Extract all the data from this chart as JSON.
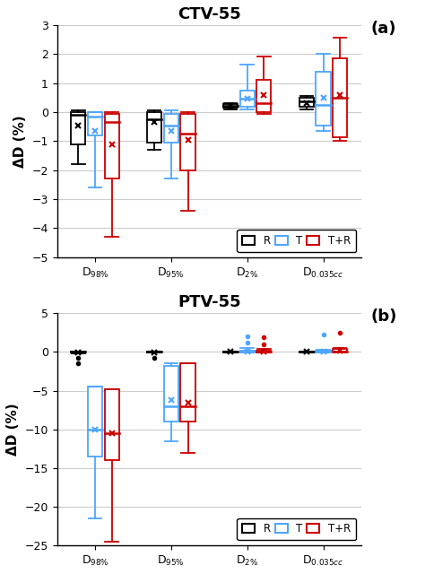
{
  "title_a": "CTV-55",
  "title_b": "PTV-55",
  "label_a": "(a)",
  "label_b": "(b)",
  "ylabel": "ΔD (%)",
  "colors": [
    "black",
    "#4da6ff",
    "#cc0000"
  ],
  "legend_labels": [
    "R",
    "T",
    "T+R"
  ],
  "ctv_data": {
    "R": {
      "D98": {
        "q1": -1.1,
        "median": -0.1,
        "q3": 0.0,
        "whislo": -1.8,
        "whishi": 0.05,
        "mean": -0.45
      },
      "D95": {
        "q1": -1.05,
        "median": -0.25,
        "q3": 0.0,
        "whislo": -1.3,
        "whishi": 0.05,
        "mean": -0.35
      },
      "D2": {
        "q1": 0.15,
        "median": 0.22,
        "q3": 0.28,
        "whislo": 0.1,
        "whishi": 0.32,
        "mean": 0.22
      },
      "D035": {
        "q1": 0.2,
        "median": 0.38,
        "q3": 0.5,
        "whislo": 0.1,
        "whishi": 0.55,
        "mean": 0.32
      }
    },
    "T": {
      "D98": {
        "q1": -0.8,
        "median": -0.15,
        "q3": 0.0,
        "whislo": -2.6,
        "whishi": 0.0,
        "mean": -0.65
      },
      "D95": {
        "q1": -1.05,
        "median": -0.45,
        "q3": -0.05,
        "whislo": -2.3,
        "whishi": 0.05,
        "mean": -0.65
      },
      "D2": {
        "q1": 0.2,
        "median": 0.45,
        "q3": 0.75,
        "whislo": 0.1,
        "whishi": 1.65,
        "mean": 0.45
      },
      "D035": {
        "q1": -0.45,
        "median": 0.25,
        "q3": 1.4,
        "whislo": -0.65,
        "whishi": 2.0,
        "mean": 0.5
      }
    },
    "TR": {
      "D98": {
        "q1": -2.3,
        "median": -0.35,
        "q3": -0.05,
        "whislo": -4.3,
        "whishi": 0.0,
        "mean": -1.1
      },
      "D95": {
        "q1": -2.0,
        "median": -0.75,
        "q3": -0.05,
        "whislo": -3.4,
        "whishi": 0.0,
        "mean": -0.95
      },
      "D2": {
        "q1": 0.0,
        "median": 0.3,
        "q3": 1.1,
        "whislo": -0.05,
        "whishi": 1.9,
        "mean": 0.6
      },
      "D035": {
        "q1": -0.85,
        "median": 0.5,
        "q3": 1.85,
        "whislo": -1.0,
        "whishi": 2.55,
        "mean": 0.6
      }
    }
  },
  "ptv_data": {
    "R": {
      "D98": {
        "q1": -0.05,
        "median": 0.0,
        "q3": 0.0,
        "whislo": -0.15,
        "whishi": 0.0,
        "mean": -0.02,
        "fliers": [
          -0.8,
          -1.5
        ]
      },
      "D95": {
        "q1": -0.05,
        "median": 0.0,
        "q3": 0.0,
        "whislo": -0.1,
        "whishi": 0.0,
        "mean": -0.02,
        "fliers": [
          -0.8
        ]
      },
      "D2": {
        "q1": -0.02,
        "median": 0.0,
        "q3": 0.0,
        "whislo": -0.05,
        "whishi": 0.02,
        "mean": 0.0,
        "fliers": []
      },
      "D035": {
        "q1": -0.02,
        "median": 0.0,
        "q3": 0.02,
        "whislo": -0.05,
        "whishi": 0.05,
        "mean": 0.0,
        "fliers": []
      }
    },
    "T": {
      "D98": {
        "q1": -13.5,
        "median": -10.0,
        "q3": -4.5,
        "whislo": -21.5,
        "whishi": -4.5,
        "mean": -10.0,
        "fliers": []
      },
      "D95": {
        "q1": -9.0,
        "median": -7.0,
        "q3": -1.8,
        "whislo": -11.5,
        "whishi": -1.5,
        "mean": -6.2,
        "fliers": []
      },
      "D2": {
        "q1": 0.0,
        "median": 0.05,
        "q3": 0.2,
        "whislo": -0.05,
        "whishi": 0.5,
        "mean": 0.1,
        "fliers": [
          1.2,
          2.0
        ]
      },
      "D035": {
        "q1": 0.0,
        "median": 0.05,
        "q3": 0.2,
        "whislo": -0.02,
        "whishi": 0.3,
        "mean": 0.1,
        "fliers": [
          2.3
        ]
      }
    },
    "TR": {
      "D98": {
        "q1": -14.0,
        "median": -10.5,
        "q3": -4.8,
        "whislo": -24.5,
        "whishi": -4.8,
        "mean": -10.5,
        "fliers": []
      },
      "D95": {
        "q1": -9.0,
        "median": -7.0,
        "q3": -1.5,
        "whislo": -13.0,
        "whishi": -1.5,
        "mean": -6.5,
        "fliers": []
      },
      "D2": {
        "q1": -0.02,
        "median": 0.05,
        "q3": 0.18,
        "whislo": -0.05,
        "whishi": 0.45,
        "mean": 0.1,
        "fliers": [
          1.0,
          1.9
        ]
      },
      "D035": {
        "q1": 0.0,
        "median": 0.1,
        "q3": 0.35,
        "whislo": -0.02,
        "whishi": 0.5,
        "mean": 0.2,
        "fliers": [
          2.5
        ]
      }
    }
  },
  "ylim_a": [
    -5,
    3
  ],
  "yticks_a": [
    -5,
    -4,
    -3,
    -2,
    -1,
    0,
    1,
    2,
    3
  ],
  "ylim_b": [
    -25,
    5
  ],
  "yticks_b": [
    -25,
    -20,
    -15,
    -10,
    -5,
    0,
    5
  ]
}
